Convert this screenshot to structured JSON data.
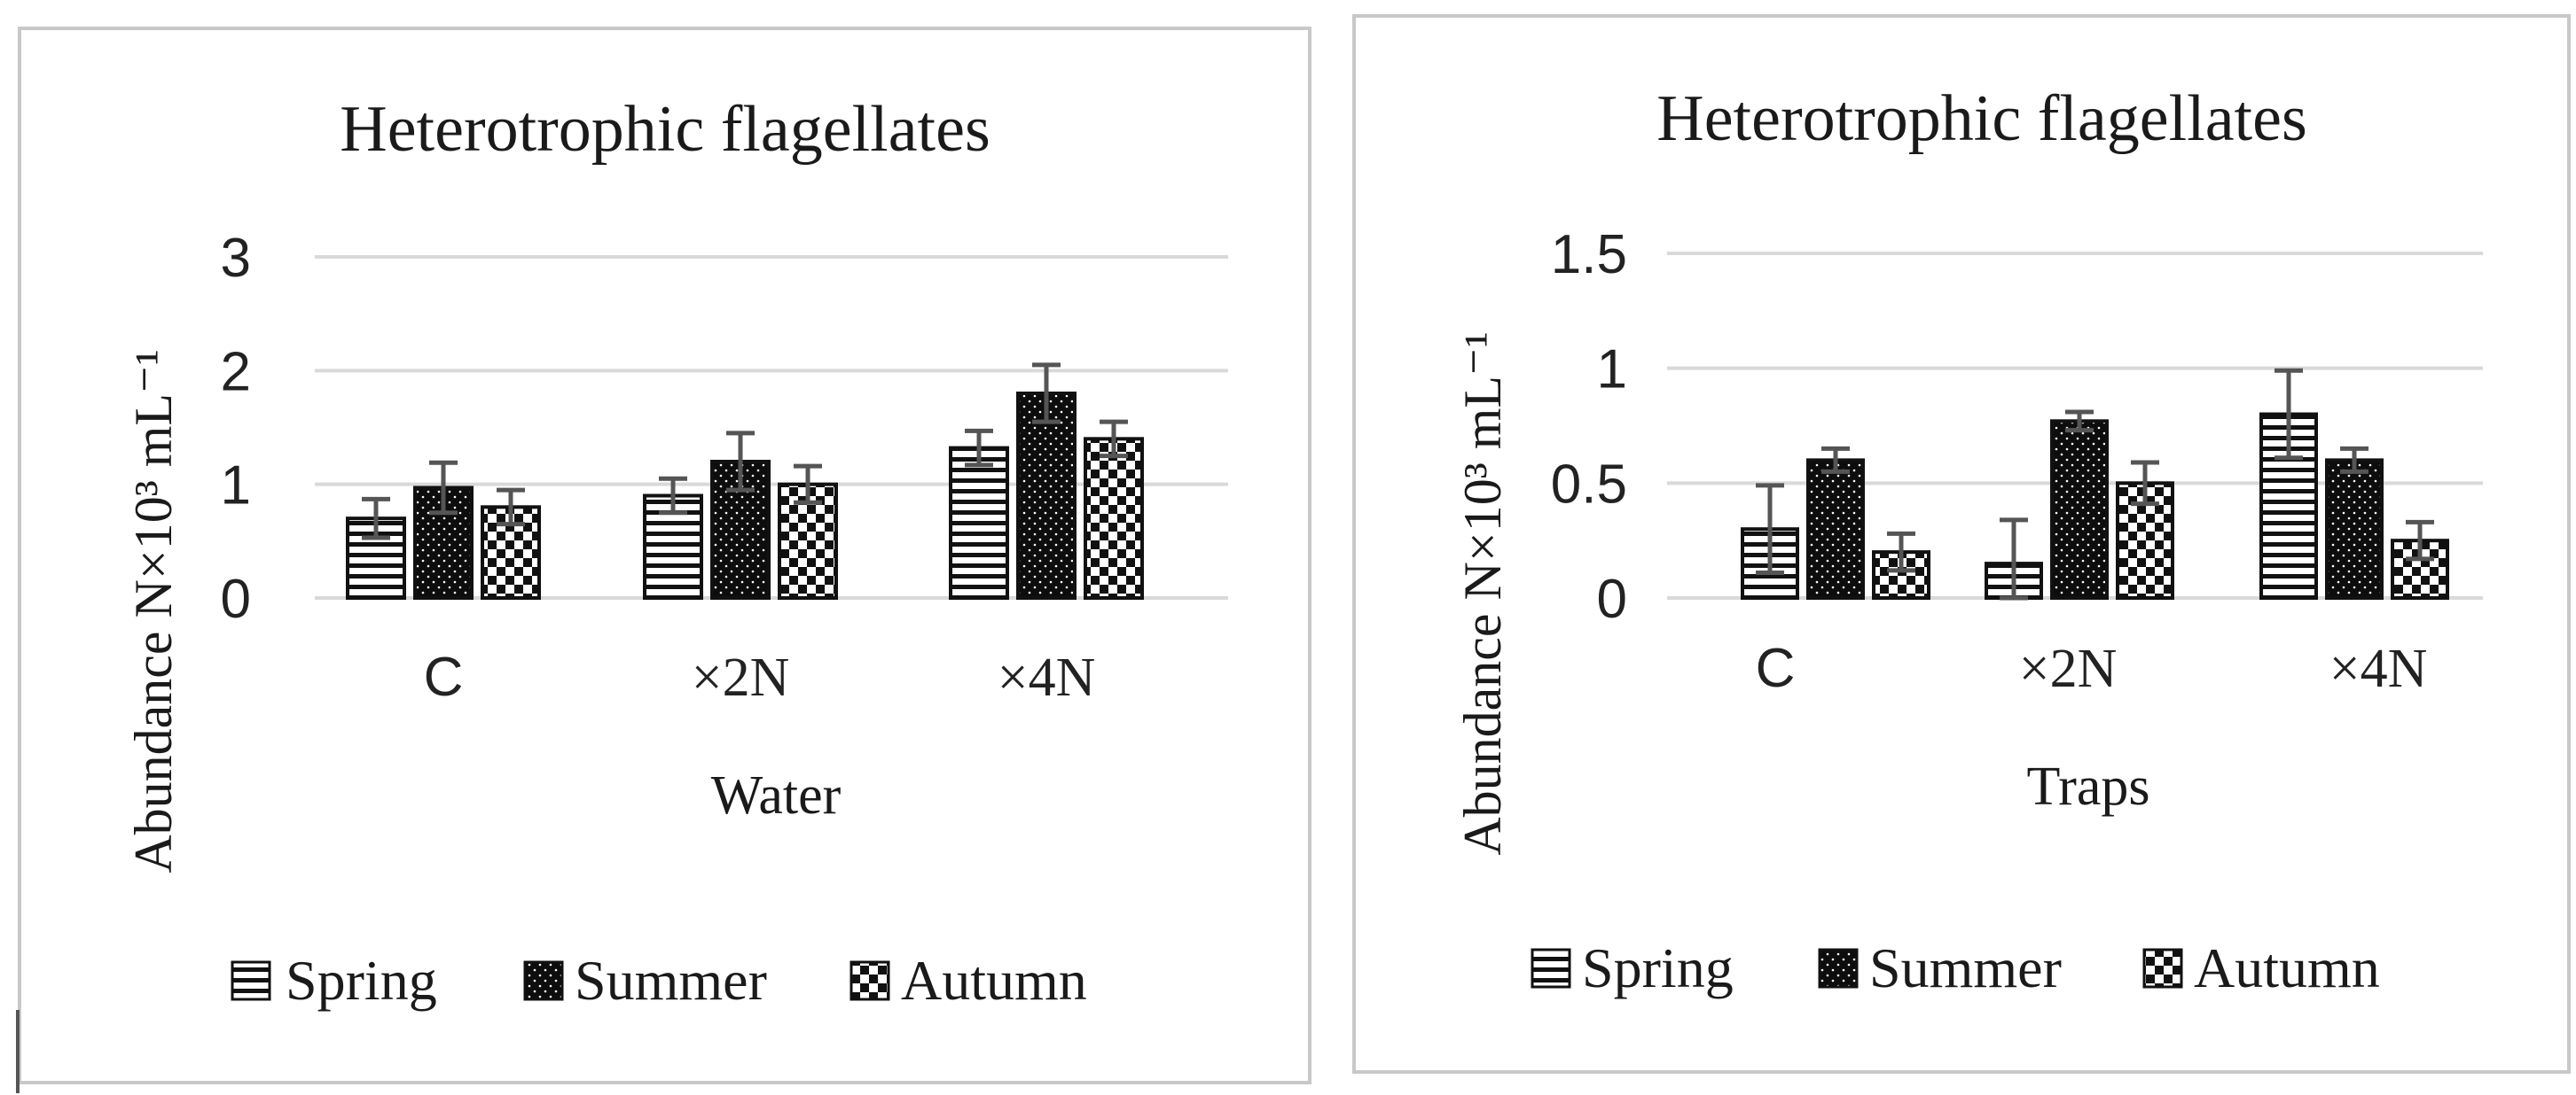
{
  "chart_data": [
    {
      "type": "bar",
      "title": "Heterotrophic flagellates",
      "xlabel": "Water",
      "ylabel": "Abundance N×10³ mL⁻¹",
      "ylim": [
        0,
        3
      ],
      "yticks": [
        "0",
        "1",
        "2",
        "3"
      ],
      "categories": [
        "C",
        "×2N",
        "×4N"
      ],
      "series": [
        {
          "name": "Spring",
          "values": [
            0.7,
            0.9,
            1.32
          ],
          "errors": [
            0.17,
            0.15,
            0.15
          ]
        },
        {
          "name": "Summer",
          "values": [
            0.97,
            1.2,
            1.8
          ],
          "errors": [
            0.22,
            0.25,
            0.25
          ]
        },
        {
          "name": "Autumn",
          "values": [
            0.8,
            1.0,
            1.4
          ],
          "errors": [
            0.15,
            0.16,
            0.15
          ]
        }
      ],
      "grid": true,
      "legend_position": "bottom"
    },
    {
      "type": "bar",
      "title": "Heterotrophic flagellates",
      "xlabel": "Traps",
      "ylabel": "Abundance N×10³ mL⁻¹",
      "ylim": [
        0,
        1.5
      ],
      "yticks": [
        "0",
        "0.5",
        "1",
        "1.5"
      ],
      "categories": [
        "C",
        "×2N",
        "×4N"
      ],
      "series": [
        {
          "name": "Spring",
          "values": [
            0.3,
            0.15,
            0.8
          ],
          "errors": [
            0.19,
            0.19,
            0.19
          ]
        },
        {
          "name": "Summer",
          "values": [
            0.6,
            0.77,
            0.6
          ],
          "errors": [
            0.05,
            0.04,
            0.05
          ]
        },
        {
          "name": "Autumn",
          "values": [
            0.2,
            0.5,
            0.25
          ],
          "errors": [
            0.08,
            0.09,
            0.08
          ]
        }
      ],
      "grid": true,
      "legend_position": "bottom"
    }
  ]
}
